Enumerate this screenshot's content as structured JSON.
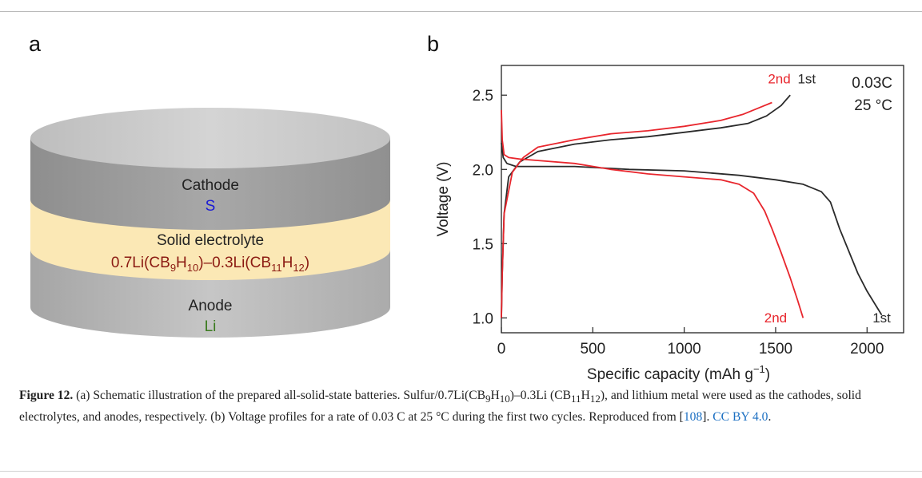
{
  "panel_a_label": "a",
  "panel_b_label": "b",
  "schematic": {
    "cathode_label": "Cathode",
    "cathode_material": "S",
    "electrolyte_label": "Solid electrolyte",
    "electrolyte_formula_parts": [
      "0.7Li(CB",
      "9",
      "H",
      "10",
      ")–0.3Li(CB",
      "11",
      "H",
      "12",
      ")"
    ],
    "anode_label": "Anode",
    "anode_material": "Li",
    "colors": {
      "cathode_text": "#1a1ad6",
      "electrolyte_text": "#8b1a12",
      "anode_text": "#3a7a1e",
      "electrolyte_band": "#fbe8b5",
      "cell_top": "#c9c9c9",
      "cell_side_upper": "#9a9a9a",
      "cell_side_lower": "#b9b9b9"
    }
  },
  "chart_data": {
    "type": "line",
    "xlabel": "Specific capacity (mAh g",
    "xlabel_sup": "−1",
    "xlabel_end": ")",
    "ylabel": "Voltage (V)",
    "xlim": [
      0,
      2200
    ],
    "ylim": [
      0.9,
      2.7
    ],
    "xticks": [
      0,
      500,
      1000,
      1500,
      2000
    ],
    "yticks": [
      1.0,
      1.5,
      2.0,
      2.5
    ],
    "xtick_labels": [
      "0",
      "500",
      "1000",
      "1500",
      "2000"
    ],
    "ytick_labels": [
      "1.0",
      "1.5",
      "2.0",
      "2.5"
    ],
    "annotation_rate": "0.03C",
    "annotation_temp": "25 °C",
    "series": [
      {
        "name": "1st",
        "color": "#2a2a2a",
        "curves": {
          "discharge": [
            [
              0,
              2.18
            ],
            [
              10,
              2.08
            ],
            [
              30,
              2.04
            ],
            [
              80,
              2.02
            ],
            [
              200,
              2.02
            ],
            [
              400,
              2.02
            ],
            [
              700,
              2.0
            ],
            [
              1000,
              1.99
            ],
            [
              1300,
              1.96
            ],
            [
              1500,
              1.93
            ],
            [
              1650,
              1.9
            ],
            [
              1750,
              1.85
            ],
            [
              1800,
              1.78
            ],
            [
              1850,
              1.6
            ],
            [
              1900,
              1.45
            ],
            [
              1950,
              1.3
            ],
            [
              2000,
              1.18
            ],
            [
              2050,
              1.08
            ],
            [
              2080,
              1.02
            ]
          ],
          "charge": [
            [
              0,
              1.0
            ],
            [
              5,
              1.3
            ],
            [
              15,
              1.7
            ],
            [
              40,
              1.95
            ],
            [
              100,
              2.05
            ],
            [
              200,
              2.12
            ],
            [
              400,
              2.17
            ],
            [
              600,
              2.2
            ],
            [
              800,
              2.22
            ],
            [
              1000,
              2.25
            ],
            [
              1200,
              2.28
            ],
            [
              1350,
              2.31
            ],
            [
              1450,
              2.36
            ],
            [
              1530,
              2.43
            ],
            [
              1580,
              2.5
            ]
          ]
        },
        "label_charge": "1st",
        "label_discharge": "1st"
      },
      {
        "name": "2nd",
        "color": "#e8262d",
        "curves": {
          "discharge": [
            [
              0,
              2.4
            ],
            [
              5,
              2.2
            ],
            [
              15,
              2.1
            ],
            [
              40,
              2.08
            ],
            [
              100,
              2.07
            ],
            [
              200,
              2.06
            ],
            [
              400,
              2.04
            ],
            [
              600,
              2.0
            ],
            [
              800,
              1.97
            ],
            [
              1000,
              1.95
            ],
            [
              1200,
              1.93
            ],
            [
              1300,
              1.9
            ],
            [
              1380,
              1.84
            ],
            [
              1440,
              1.72
            ],
            [
              1480,
              1.6
            ],
            [
              1530,
              1.44
            ],
            [
              1580,
              1.27
            ],
            [
              1620,
              1.12
            ],
            [
              1650,
              1.0
            ]
          ],
          "charge": [
            [
              0,
              1.0
            ],
            [
              5,
              1.3
            ],
            [
              15,
              1.7
            ],
            [
              60,
              1.98
            ],
            [
              120,
              2.08
            ],
            [
              200,
              2.15
            ],
            [
              400,
              2.2
            ],
            [
              600,
              2.24
            ],
            [
              800,
              2.26
            ],
            [
              1000,
              2.29
            ],
            [
              1200,
              2.33
            ],
            [
              1320,
              2.37
            ],
            [
              1420,
              2.42
            ],
            [
              1480,
              2.45
            ]
          ]
        },
        "label_charge": "2nd",
        "label_discharge": "2nd"
      }
    ]
  },
  "caption": {
    "fig_label": "Figure 12.",
    "text_1": " (a) Schematic illustration of the prepared all-solid-state batteries. Sulfur/0.7Li(CB",
    "sub_1": "9",
    "text_2": "H",
    "sub_2": "10",
    "text_3": ")–0.3Li (CB",
    "sub_3": "11",
    "text_4": "H",
    "sub_4": "12",
    "text_5": "), and lithium metal were used as the cathodes, solid electrolytes, and anodes, respectively. (b) Voltage profiles for a rate of 0.03 C at 25 °C during the first two cycles. Reproduced from [",
    "ref": "108",
    "text_6": "]. ",
    "license": "CC BY 4.0",
    "text_7": "."
  }
}
